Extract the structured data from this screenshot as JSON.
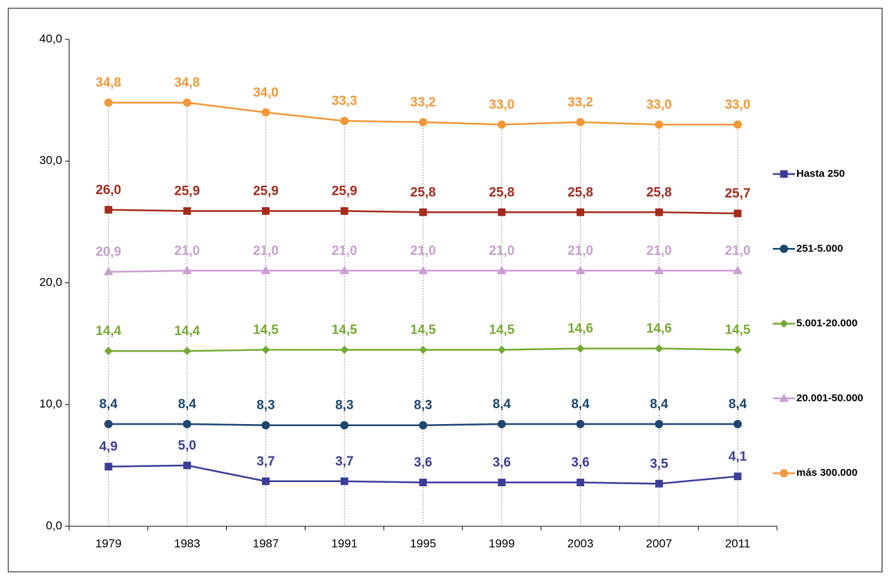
{
  "chart_data": {
    "type": "line",
    "categories": [
      "1979",
      "1983",
      "1987",
      "1991",
      "1995",
      "1999",
      "2003",
      "2007",
      "2011"
    ],
    "ylim": [
      0,
      40
    ],
    "yticks": [
      {
        "value": 0,
        "label": "0,0"
      },
      {
        "value": 10,
        "label": "10,0"
      },
      {
        "value": 20,
        "label": "20,0"
      },
      {
        "value": 30,
        "label": "30,0"
      },
      {
        "value": 40,
        "label": "40,0"
      }
    ],
    "series": [
      {
        "name": "Hasta 250",
        "color": "#3c3c98",
        "marker": "square",
        "values": [
          4.9,
          5.0,
          3.7,
          3.7,
          3.6,
          3.6,
          3.6,
          3.5,
          4.1
        ],
        "value_labels": [
          "4,9",
          "5,0",
          "3,7",
          "3,7",
          "3,6",
          "3,6",
          "3,6",
          "3,5",
          "4,1"
        ]
      },
      {
        "name": "251-5.000",
        "color": "#1d4770",
        "marker": "circle",
        "values": [
          8.4,
          8.4,
          8.3,
          8.3,
          8.3,
          8.4,
          8.4,
          8.4,
          8.4
        ],
        "value_labels": [
          "8,4",
          "8,4",
          "8,3",
          "8,3",
          "8,3",
          "8,4",
          "8,4",
          "8,4",
          "8,4"
        ]
      },
      {
        "name": "5.001-20.000",
        "color": "#76a933",
        "marker": "diamond",
        "values": [
          14.4,
          14.4,
          14.5,
          14.5,
          14.5,
          14.5,
          14.6,
          14.6,
          14.5
        ],
        "value_labels": [
          "14,4",
          "14,4",
          "14,5",
          "14,5",
          "14,5",
          "14,5",
          "14,6",
          "14,6",
          "14,5"
        ]
      },
      {
        "name": "20.001-50.000",
        "color": "#c99fcf",
        "marker": "triangle",
        "values": [
          20.9,
          21.0,
          21.0,
          21.0,
          21.0,
          21.0,
          21.0,
          21.0,
          21.0
        ],
        "value_labels": [
          "20,9",
          "21,0",
          "21,0",
          "21,0",
          "21,0",
          "21,0",
          "21,0",
          "21,0",
          "21,0"
        ]
      },
      {
        "color": "#a52a1c",
        "marker": "square",
        "values": [
          26.0,
          25.9,
          25.9,
          25.9,
          25.8,
          25.8,
          25.8,
          25.8,
          25.7
        ],
        "value_labels": [
          "26,0",
          "25,9",
          "25,9",
          "25,9",
          "25,8",
          "25,8",
          "25,8",
          "25,8",
          "25,7"
        ]
      },
      {
        "name": "más 300.000",
        "color": "#f29838",
        "marker": "circle",
        "values": [
          34.8,
          34.8,
          34.0,
          33.3,
          33.2,
          33.0,
          33.2,
          33.0,
          33.0
        ],
        "value_labels": [
          "34,8",
          "34,8",
          "34,0",
          "33,3",
          "33,2",
          "33,0",
          "33,2",
          "33,0",
          "33,0"
        ]
      }
    ]
  }
}
